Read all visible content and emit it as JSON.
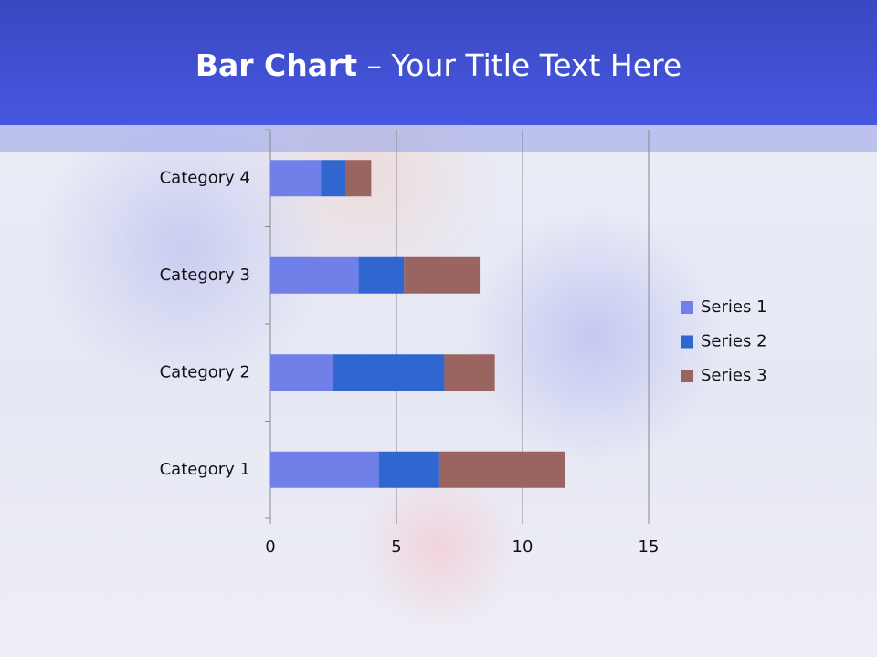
{
  "chart_data": {
    "type": "stacked-bar-horizontal",
    "title_bold": "Bar Chart",
    "title_rest": "– Your Title Text Here",
    "categories": [
      "Category 1",
      "Category 2",
      "Category 3",
      "Category 4"
    ],
    "series": [
      {
        "name": "Series 1",
        "color": "#7080e8",
        "values": [
          4.3,
          2.5,
          3.5,
          2
        ]
      },
      {
        "name": "Series 2",
        "color": "#2f66d0",
        "values": [
          2.4,
          4.4,
          1.8,
          1
        ]
      },
      {
        "name": "Series 3",
        "color": "#9a6460",
        "values": [
          5,
          2,
          3,
          1
        ]
      }
    ],
    "xlim": [
      0,
      15
    ],
    "xticks": [
      0,
      5,
      10,
      15
    ],
    "grid": true,
    "legend": "right"
  }
}
